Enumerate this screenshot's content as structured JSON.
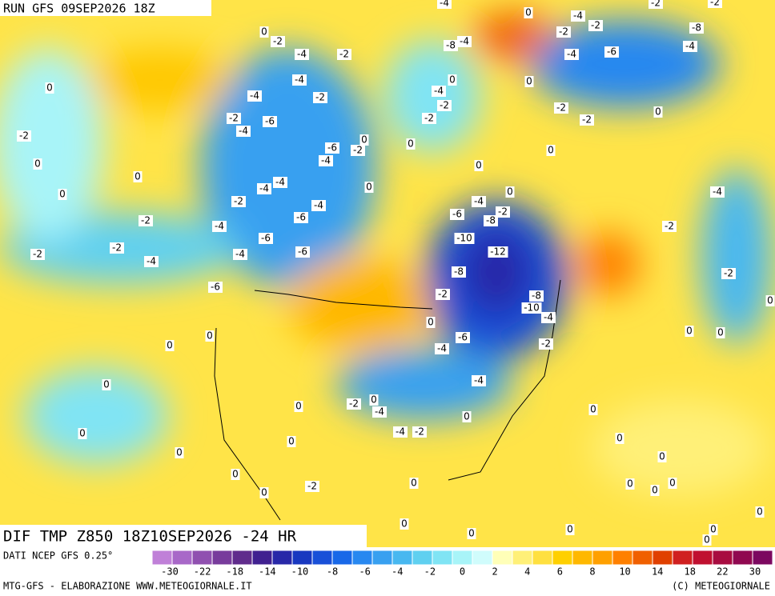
{
  "header": {
    "run": "RUN GFS 09SEP2026 18Z",
    "field": "DIF TMP Z850 18Z10SEP2026 -24 HR"
  },
  "footer": {
    "source": "DATI NCEP GFS 0.25°",
    "credit": "MTG-GFS - ELABORAZIONE WWW.METEOGIORNALE.IT",
    "copyright": "(C) METEOGIORNALE"
  },
  "colorbar": {
    "colors": [
      "#c080d8",
      "#a868c8",
      "#9050b0",
      "#783c9c",
      "#602c8c",
      "#402090",
      "#2828a8",
      "#1838c0",
      "#1850d8",
      "#1868e8",
      "#2888f0",
      "#38a0f0",
      "#48b8f0",
      "#60d0f0",
      "#80e4f4",
      "#a8f4f8",
      "#d0fcfc",
      "#ffffb8",
      "#fff078",
      "#ffe040",
      "#ffd000",
      "#ffb800",
      "#ffa000",
      "#ff8000",
      "#f06000",
      "#e04000",
      "#d02020",
      "#c01030",
      "#a80c40",
      "#900850",
      "#7c0860"
    ],
    "ticks": [
      -30,
      -22,
      -18,
      -14,
      -10,
      -8,
      -6,
      -4,
      -2,
      0,
      2,
      4,
      6,
      8,
      10,
      14,
      18,
      22,
      30
    ]
  },
  "contour_labels": [
    0,
    -2,
    -4,
    -2,
    -4,
    -2,
    -4,
    -2,
    -6,
    -4,
    -6,
    -2,
    -4,
    -4,
    -4,
    -4,
    -6,
    -2,
    -4,
    -6,
    -6,
    -4,
    -6,
    -4,
    -2,
    -2,
    -2,
    0,
    -2,
    0,
    0,
    0,
    0,
    0,
    -2,
    -8,
    -4,
    -4,
    -2,
    0,
    -4,
    -6,
    -8,
    -2,
    -10,
    -12,
    -8,
    -2,
    -8,
    -10,
    -4,
    -6,
    -4,
    -2,
    -4,
    0,
    -2,
    -4,
    -4,
    -2,
    -2,
    0,
    0,
    0,
    0,
    0,
    0,
    0,
    0,
    0,
    0,
    0,
    0,
    0,
    0,
    0,
    0,
    0,
    0,
    0,
    0,
    0,
    0,
    0,
    -2,
    -4,
    -2,
    0,
    0,
    0,
    -2,
    -2,
    -4,
    -6,
    -8,
    -4,
    -2,
    -2,
    -4,
    0,
    -4,
    -2,
    -2,
    0,
    0,
    0,
    0,
    0,
    0,
    0,
    -2
  ]
}
